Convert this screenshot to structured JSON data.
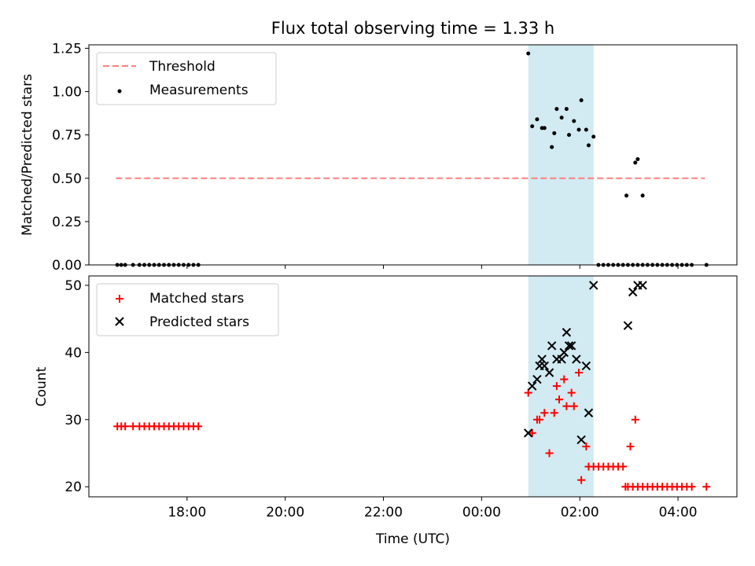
{
  "title": "Flux total observing time = 1.33 h",
  "xlabel": "Time (UTC)",
  "highlight_band": {
    "start_h": 24.95,
    "end_h": 26.28,
    "color": "#add8e6"
  },
  "chart_data": [
    {
      "type": "scatter",
      "ylabel": "Matched/Predicted stars",
      "xlim_h": [
        16.0,
        29.2
      ],
      "ylim": [
        0,
        1.27
      ],
      "yticks": [
        0.0,
        0.25,
        0.5,
        0.75,
        1.0,
        1.25
      ],
      "yticklabels": [
        "0.00",
        "0.25",
        "0.50",
        "0.75",
        "1.00",
        "1.25"
      ],
      "legend": {
        "placement": "top-left",
        "entries": [
          "Threshold",
          "Measurements"
        ]
      },
      "series": [
        {
          "name": "Threshold",
          "kind": "dashed-line",
          "color": "#ff7f7f",
          "x_h": [
            16.55,
            28.55
          ],
          "y": [
            0.5,
            0.5
          ]
        },
        {
          "name": "Measurements",
          "kind": "dots",
          "color": "#000000",
          "x_h": [
            16.58,
            16.66,
            16.74,
            16.9,
            17.03,
            17.13,
            17.23,
            17.33,
            17.43,
            17.53,
            17.63,
            17.73,
            17.83,
            17.93,
            18.03,
            18.13,
            18.23,
            24.95,
            25.03,
            25.13,
            25.23,
            25.28,
            25.43,
            25.48,
            25.53,
            25.63,
            25.73,
            25.78,
            25.88,
            25.98,
            26.03,
            26.13,
            26.18,
            26.28,
            26.38,
            26.48,
            26.58,
            26.68,
            26.78,
            26.88,
            26.98,
            27.08,
            27.18,
            27.28,
            27.38,
            27.48,
            27.58,
            27.68,
            27.78,
            27.88,
            27.98,
            28.08,
            28.18,
            28.28,
            28.58,
            26.95,
            27.13,
            27.18,
            27.28
          ],
          "y": [
            0,
            0,
            0,
            0,
            0,
            0,
            0,
            0,
            0,
            0,
            0,
            0,
            0,
            0,
            0,
            0,
            0,
            1.22,
            0.8,
            0.84,
            0.79,
            0.79,
            0.68,
            0.76,
            0.9,
            0.85,
            0.9,
            0.75,
            0.83,
            0.78,
            0.95,
            0.78,
            0.69,
            0.74,
            0,
            0,
            0,
            0,
            0,
            0,
            0,
            0,
            0,
            0,
            0,
            0,
            0,
            0,
            0,
            0,
            0,
            0,
            0,
            0,
            0,
            0.4,
            0.59,
            0.61,
            0.4
          ]
        }
      ]
    },
    {
      "type": "scatter",
      "ylabel": "Count",
      "xlim_h": [
        16.0,
        29.2
      ],
      "ylim": [
        18.5,
        51.4
      ],
      "yticks": [
        20,
        30,
        40,
        50
      ],
      "yticklabels": [
        "20",
        "30",
        "40",
        "50"
      ],
      "xticks_h": [
        18,
        20,
        22,
        24,
        26,
        28
      ],
      "xticklabels": [
        "18:00",
        "20:00",
        "22:00",
        "00:00",
        "02:00",
        "04:00"
      ],
      "legend": {
        "placement": "top-left",
        "entries": [
          "Matched stars",
          "Predicted stars"
        ]
      },
      "series": [
        {
          "name": "Matched stars",
          "kind": "plus",
          "color": "#ff0000",
          "x_h": [
            16.58,
            16.66,
            16.74,
            16.9,
            17.03,
            17.13,
            17.23,
            17.33,
            17.43,
            17.53,
            17.63,
            17.73,
            17.83,
            17.93,
            18.03,
            18.13,
            18.23,
            24.95,
            25.03,
            25.13,
            25.18,
            25.28,
            25.38,
            25.48,
            25.53,
            25.58,
            25.68,
            25.73,
            25.83,
            25.88,
            25.98,
            26.03,
            26.13,
            26.18,
            26.28,
            26.38,
            26.48,
            26.58,
            26.68,
            26.78,
            26.88,
            26.98,
            27.08,
            27.18,
            27.28,
            27.38,
            27.48,
            27.58,
            27.68,
            27.78,
            27.88,
            27.98,
            28.08,
            28.18,
            28.28,
            28.58,
            26.93,
            27.03,
            27.13
          ],
          "y": [
            29,
            29,
            29,
            29,
            29,
            29,
            29,
            29,
            29,
            29,
            29,
            29,
            29,
            29,
            29,
            29,
            29,
            34,
            28,
            30,
            30,
            31,
            25,
            31,
            35,
            33,
            36,
            32,
            34,
            32,
            37,
            21,
            26,
            23,
            23,
            23,
            23,
            23,
            23,
            23,
            23,
            20,
            20,
            20,
            20,
            20,
            20,
            20,
            20,
            20,
            20,
            20,
            20,
            20,
            20,
            20,
            20,
            26,
            30
          ]
        },
        {
          "name": "Predicted stars",
          "kind": "x",
          "color": "#000000",
          "x_h": [
            24.95,
            25.03,
            25.13,
            25.18,
            25.23,
            25.28,
            25.38,
            25.43,
            25.53,
            25.63,
            25.68,
            25.73,
            25.78,
            25.83,
            25.93,
            26.03,
            26.13,
            26.18,
            26.28,
            26.98,
            27.08,
            27.18,
            27.28
          ],
          "y": [
            28,
            35,
            36,
            38,
            39,
            38,
            37,
            41,
            39,
            39,
            40,
            43,
            41,
            41,
            39,
            27,
            38,
            31,
            50,
            44,
            49,
            50,
            50
          ]
        }
      ]
    }
  ]
}
